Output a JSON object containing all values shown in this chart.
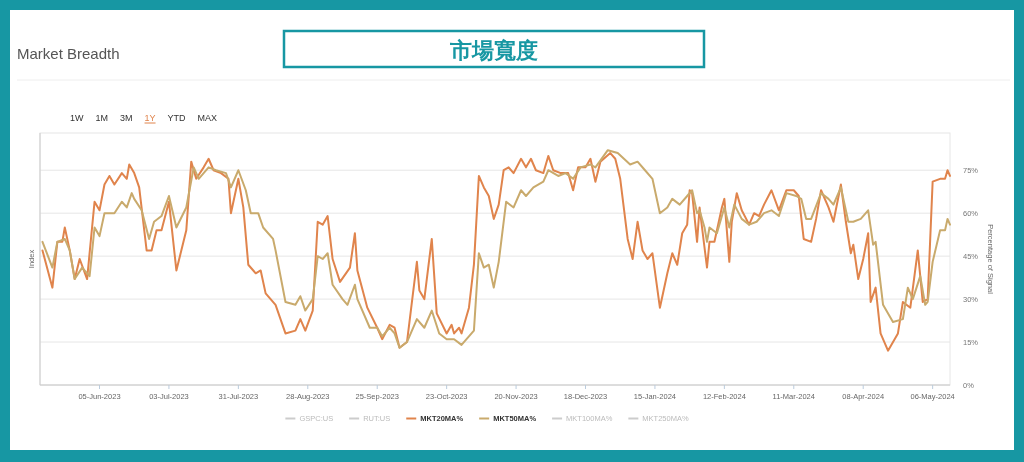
{
  "chart_data": {
    "type": "line",
    "title": "Market Breadth",
    "subtitle": "市場寬度",
    "annotations": [
      "1W",
      "1M",
      "3M",
      "1Y",
      "YTD",
      "MAX"
    ],
    "ylabel": "Index",
    "y2label": "Percentage of Signal",
    "xlim": [
      "2023-05-12",
      "2024-05-13"
    ],
    "xticks": [
      {
        "value": "2023-06-05",
        "label": "05-Jun-2023"
      },
      {
        "value": "2023-07-03",
        "label": "03-Jul-2023"
      },
      {
        "value": "2023-07-31",
        "label": "31-Jul-2023"
      },
      {
        "value": "2023-08-28",
        "label": "28-Aug-2023"
      },
      {
        "value": "2023-09-25",
        "label": "25-Sep-2023"
      },
      {
        "value": "2023-10-23",
        "label": "23-Oct-2023"
      },
      {
        "value": "2023-11-20",
        "label": "20-Nov-2023"
      },
      {
        "value": "2023-12-18",
        "label": "18-Dec-2023"
      },
      {
        "value": "2024-01-15",
        "label": "15-Jan-2024"
      },
      {
        "value": "2024-02-12",
        "label": "12-Feb-2024"
      },
      {
        "value": "2024-03-11",
        "label": "11-Mar-2024"
      },
      {
        "value": "2024-04-08",
        "label": "08-Apr-2024"
      },
      {
        "value": "2024-05-06",
        "label": "06-May-2024"
      }
    ],
    "y2lim": [
      0,
      88
    ],
    "y2ticks": [
      {
        "value": 0,
        "label": "0%"
      },
      {
        "value": 15,
        "label": "15%"
      },
      {
        "value": 30,
        "label": "30%"
      },
      {
        "value": 45,
        "label": "45%"
      },
      {
        "value": 60,
        "label": "60%"
      },
      {
        "value": 75,
        "label": "75%"
      }
    ],
    "grid": "y",
    "legend": "bottom",
    "marker": "none",
    "line_style": "solid",
    "series": [
      {
        "name": "GSPC:US",
        "color": "#cccccc"
      },
      {
        "name": "RUT:US",
        "color": "#cccccc"
      },
      {
        "name": "MKT20MA%",
        "color": "#e0844c",
        "axis": "y2",
        "x": [
          "2023-05-13",
          "2023-05-17",
          "2023-05-19",
          "2023-05-21",
          "2023-05-22",
          "2023-05-24",
          "2023-05-26",
          "2023-05-28",
          "2023-05-31",
          "2023-06-03",
          "2023-06-05",
          "2023-06-07",
          "2023-06-09",
          "2023-06-11",
          "2023-06-14",
          "2023-06-16",
          "2023-06-17",
          "2023-06-19",
          "2023-06-21",
          "2023-06-24",
          "2023-06-26",
          "2023-06-28",
          "2023-06-30",
          "2023-07-03",
          "2023-07-06",
          "2023-07-10",
          "2023-07-12",
          "2023-07-14",
          "2023-07-17",
          "2023-07-19",
          "2023-07-21",
          "2023-07-24",
          "2023-07-27",
          "2023-07-28",
          "2023-07-31",
          "2023-08-02",
          "2023-08-04",
          "2023-08-07",
          "2023-08-09",
          "2023-08-11",
          "2023-08-15",
          "2023-08-19",
          "2023-08-23",
          "2023-08-25",
          "2023-08-27",
          "2023-08-30",
          "2023-09-01",
          "2023-09-03",
          "2023-09-05",
          "2023-09-07",
          "2023-09-10",
          "2023-09-14",
          "2023-09-16",
          "2023-09-17",
          "2023-09-21",
          "2023-09-25",
          "2023-09-27",
          "2023-09-30",
          "2023-10-02",
          "2023-10-04",
          "2023-10-07",
          "2023-10-09",
          "2023-10-11",
          "2023-10-12",
          "2023-10-14",
          "2023-10-17",
          "2023-10-19",
          "2023-10-23",
          "2023-10-25",
          "2023-10-26",
          "2023-10-28",
          "2023-10-29",
          "2023-11-01",
          "2023-11-03",
          "2023-11-05",
          "2023-11-07",
          "2023-11-09",
          "2023-11-11",
          "2023-11-13",
          "2023-11-15",
          "2023-11-17",
          "2023-11-19",
          "2023-11-22",
          "2023-11-24",
          "2023-11-26",
          "2023-11-28",
          "2023-12-01",
          "2023-12-03",
          "2023-12-05",
          "2023-12-08",
          "2023-12-11",
          "2023-12-13",
          "2023-12-15",
          "2023-12-18",
          "2023-12-20",
          "2023-12-22",
          "2023-12-24",
          "2023-12-28",
          "2023-12-30",
          "2024-01-01",
          "2024-01-04",
          "2024-01-06",
          "2024-01-08",
          "2024-01-10",
          "2024-01-12",
          "2024-01-14",
          "2024-01-17",
          "2024-01-20",
          "2024-01-22",
          "2024-01-24",
          "2024-01-26",
          "2024-01-28",
          "2024-01-29",
          "2024-01-30",
          "2024-02-01",
          "2024-02-02",
          "2024-02-03",
          "2024-02-05",
          "2024-02-06",
          "2024-02-08",
          "2024-02-11",
          "2024-02-12",
          "2024-02-14",
          "2024-02-15",
          "2024-02-17",
          "2024-02-19",
          "2024-02-22",
          "2024-02-24",
          "2024-02-26",
          "2024-02-28",
          "2024-03-02",
          "2024-03-05",
          "2024-03-08",
          "2024-03-11",
          "2024-03-13",
          "2024-03-15",
          "2024-03-18",
          "2024-03-20",
          "2024-03-22",
          "2024-03-25",
          "2024-03-27",
          "2024-03-30",
          "2024-04-01",
          "2024-04-03",
          "2024-04-04",
          "2024-04-06",
          "2024-04-08",
          "2024-04-10",
          "2024-04-11",
          "2024-04-13",
          "2024-04-15",
          "2024-04-18",
          "2024-04-22",
          "2024-04-24",
          "2024-04-27",
          "2024-04-30",
          "2024-05-02",
          "2024-05-04",
          "2024-05-06",
          "2024-05-09",
          "2024-05-11",
          "2024-05-12",
          "2024-05-13"
        ],
        "values": [
          47,
          34,
          50,
          50,
          55,
          47,
          37,
          44,
          37,
          64,
          61,
          70,
          73,
          70,
          74,
          72,
          77,
          74,
          69,
          47,
          47,
          54,
          54,
          64,
          40,
          54,
          78,
          72,
          76,
          79,
          75,
          74,
          72,
          60,
          72,
          62,
          42,
          39,
          40,
          32,
          28,
          18,
          19,
          23,
          19,
          26,
          57,
          56,
          59,
          44,
          36,
          41,
          53,
          40,
          27,
          20,
          16,
          21,
          20,
          13,
          15,
          29,
          43,
          33,
          30,
          51,
          25,
          18,
          21,
          18,
          20,
          18,
          27,
          42,
          73,
          69,
          66,
          58,
          63,
          75,
          76,
          74,
          79,
          76,
          79,
          75,
          74,
          80,
          75,
          74,
          74,
          68,
          76,
          76,
          79,
          71,
          78,
          81,
          79,
          72,
          51,
          44,
          57,
          47,
          44,
          46,
          27,
          39,
          46,
          42,
          53,
          56,
          68,
          67,
          50,
          62,
          55,
          41,
          50,
          50,
          62,
          65,
          43,
          57,
          67,
          61,
          56,
          60,
          59,
          63,
          68,
          61,
          68,
          68,
          66,
          51,
          50,
          58,
          68,
          62,
          57,
          70,
          57,
          46,
          49,
          37,
          44,
          53,
          29,
          34,
          18,
          12,
          18,
          29,
          27,
          47,
          29,
          30,
          71,
          72,
          72,
          75,
          73
        ]
      },
      {
        "name": "MKT50MA%",
        "color": "#c9aa6c",
        "axis": "y2",
        "x": [
          "2023-05-13",
          "2023-05-17",
          "2023-05-19",
          "2023-05-22",
          "2023-05-24",
          "2023-05-26",
          "2023-05-29",
          "2023-06-01",
          "2023-06-03",
          "2023-06-05",
          "2023-06-07",
          "2023-06-11",
          "2023-06-14",
          "2023-06-16",
          "2023-06-18",
          "2023-06-19",
          "2023-06-22",
          "2023-06-25",
          "2023-06-27",
          "2023-06-30",
          "2023-07-03",
          "2023-07-06",
          "2023-07-10",
          "2023-07-13",
          "2023-07-15",
          "2023-07-19",
          "2023-07-22",
          "2023-07-26",
          "2023-07-28",
          "2023-07-31",
          "2023-08-03",
          "2023-08-05",
          "2023-08-08",
          "2023-08-10",
          "2023-08-14",
          "2023-08-15",
          "2023-08-19",
          "2023-08-23",
          "2023-08-25",
          "2023-08-27",
          "2023-08-30",
          "2023-09-01",
          "2023-09-03",
          "2023-09-05",
          "2023-09-07",
          "2023-09-11",
          "2023-09-13",
          "2023-09-16",
          "2023-09-17",
          "2023-09-22",
          "2023-09-25",
          "2023-09-27",
          "2023-09-30",
          "2023-10-02",
          "2023-10-04",
          "2023-10-07",
          "2023-10-11",
          "2023-10-14",
          "2023-10-17",
          "2023-10-20",
          "2023-10-23",
          "2023-10-26",
          "2023-10-29",
          "2023-11-03",
          "2023-11-05",
          "2023-11-07",
          "2023-11-09",
          "2023-11-11",
          "2023-11-13",
          "2023-11-16",
          "2023-11-19",
          "2023-11-22",
          "2023-11-24",
          "2023-11-27",
          "2023-12-01",
          "2023-12-03",
          "2023-12-07",
          "2023-12-10",
          "2023-12-13",
          "2023-12-16",
          "2023-12-20",
          "2023-12-22",
          "2023-12-27",
          "2023-12-31",
          "2024-01-05",
          "2024-01-08",
          "2024-01-11",
          "2024-01-14",
          "2024-01-17",
          "2024-01-20",
          "2024-01-22",
          "2024-01-25",
          "2024-01-28",
          "2024-01-30",
          "2024-02-01",
          "2024-02-02",
          "2024-02-04",
          "2024-02-05",
          "2024-02-06",
          "2024-02-09",
          "2024-02-12",
          "2024-02-14",
          "2024-02-16",
          "2024-02-19",
          "2024-02-22",
          "2024-02-25",
          "2024-02-28",
          "2024-03-02",
          "2024-03-05",
          "2024-03-08",
          "2024-03-12",
          "2024-03-14",
          "2024-03-16",
          "2024-03-18",
          "2024-03-22",
          "2024-03-25",
          "2024-03-27",
          "2024-03-30",
          "2024-04-02",
          "2024-04-04",
          "2024-04-07",
          "2024-04-10",
          "2024-04-12",
          "2024-04-13",
          "2024-04-16",
          "2024-04-20",
          "2024-04-24",
          "2024-04-26",
          "2024-04-28",
          "2024-05-01",
          "2024-05-03",
          "2024-05-04",
          "2024-05-06",
          "2024-05-09",
          "2024-05-11",
          "2024-05-12",
          "2024-05-13"
        ],
        "values": [
          50,
          41,
          50,
          51,
          47,
          37,
          41,
          38,
          55,
          52,
          60,
          60,
          64,
          62,
          67,
          65,
          61,
          51,
          57,
          59,
          66,
          55,
          62,
          76,
          72,
          76,
          75,
          74,
          69,
          75,
          68,
          60,
          60,
          55,
          51,
          47,
          29,
          28,
          31,
          26,
          30,
          45,
          44,
          46,
          35,
          30,
          28,
          35,
          30,
          20,
          20,
          17,
          20,
          18,
          13,
          15,
          23,
          20,
          26,
          18,
          16,
          16,
          14,
          19,
          46,
          41,
          42,
          34,
          43,
          64,
          62,
          68,
          66,
          69,
          71,
          75,
          73,
          74,
          72,
          76,
          77,
          76,
          82,
          81,
          77,
          78,
          75,
          72,
          60,
          62,
          65,
          63,
          66,
          68,
          60,
          61,
          55,
          50,
          55,
          53,
          62,
          55,
          63,
          58,
          56,
          57,
          60,
          61,
          59,
          67,
          66,
          65,
          58,
          58,
          67,
          65,
          63,
          69,
          57,
          57,
          58,
          61,
          49,
          50,
          28,
          22,
          23,
          34,
          30,
          38,
          28,
          29,
          43,
          54,
          54,
          58,
          56
        ]
      },
      {
        "name": "MKT100MA%",
        "color": "#cccccc"
      },
      {
        "name": "MKT250MA%",
        "color": "#cccccc"
      }
    ]
  }
}
